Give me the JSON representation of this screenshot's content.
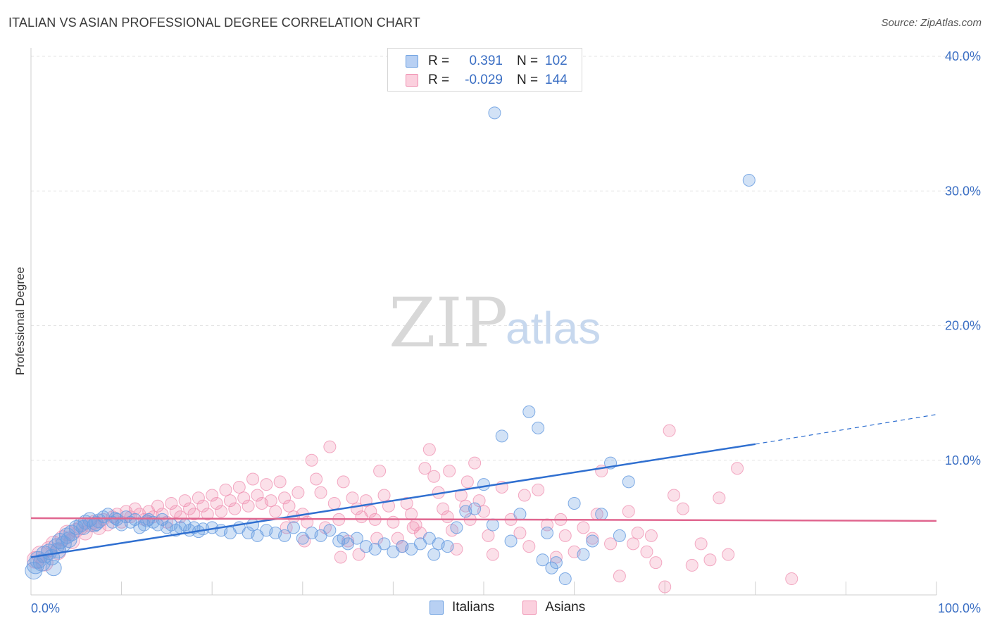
{
  "title": "ITALIAN VS ASIAN PROFESSIONAL DEGREE CORRELATION CHART",
  "source": "Source: ZipAtlas.com",
  "watermark": {
    "zip": "ZIP",
    "atlas": "atlas"
  },
  "legend": {
    "rows": [
      {
        "r_label": "R =",
        "r_value": "0.391",
        "n_label": "N =",
        "n_value": "102"
      },
      {
        "r_label": "R =",
        "r_value": "-0.029",
        "n_label": "N =",
        "n_value": "144"
      }
    ]
  },
  "bottom_legend": {
    "italians": "Italians",
    "asians": "Asians"
  },
  "chart_data": {
    "type": "scatter",
    "title": "ITALIAN VS ASIAN PROFESSIONAL DEGREE CORRELATION CHART",
    "ylabel": "Professional Degree",
    "xlabel": "",
    "xlim": [
      0,
      100
    ],
    "ylim": [
      0,
      40
    ],
    "x_tick_labels": [
      "0.0%",
      "100.0%"
    ],
    "y_ticks": [
      10,
      20,
      30,
      40
    ],
    "y_tick_labels": [
      "10.0%",
      "20.0%",
      "30.0%",
      "40.0%"
    ],
    "grid": true,
    "colors": {
      "italians": "#6a9ee0",
      "asians": "#ef8fb0",
      "italians_line": "#2f6fd0",
      "asians_line": "#e0668f"
    },
    "series": [
      {
        "name": "Italians",
        "r": 0.391,
        "n": 102,
        "trend": {
          "x0": 0,
          "y0": 2.8,
          "x1": 80,
          "y1": 11.2,
          "dashed_to_x": 100,
          "dashed_to_y": 13.4
        },
        "points": [
          [
            0.3,
            1.8
          ],
          [
            0.5,
            2.2
          ],
          [
            0.8,
            2.6
          ],
          [
            1.2,
            2.4
          ],
          [
            1.5,
            3.0
          ],
          [
            2.0,
            3.2
          ],
          [
            2.3,
            2.8
          ],
          [
            2.8,
            3.6
          ],
          [
            3.2,
            4.0
          ],
          [
            3.6,
            3.8
          ],
          [
            4.0,
            4.4
          ],
          [
            4.5,
            4.6
          ],
          [
            5.0,
            5.0
          ],
          [
            5.5,
            5.2
          ],
          [
            6.0,
            5.4
          ],
          [
            6.5,
            5.6
          ],
          [
            7.0,
            5.2
          ],
          [
            7.5,
            5.5
          ],
          [
            8.0,
            5.8
          ],
          [
            8.5,
            6.0
          ],
          [
            9.0,
            5.4
          ],
          [
            9.5,
            5.6
          ],
          [
            10.0,
            5.2
          ],
          [
            10.5,
            5.8
          ],
          [
            11.0,
            5.4
          ],
          [
            11.5,
            5.6
          ],
          [
            12.0,
            5.0
          ],
          [
            12.5,
            5.2
          ],
          [
            13.0,
            5.6
          ],
          [
            13.5,
            5.4
          ],
          [
            14.0,
            5.2
          ],
          [
            14.5,
            5.6
          ],
          [
            15.0,
            5.0
          ],
          [
            15.5,
            5.2
          ],
          [
            16.0,
            4.8
          ],
          [
            16.5,
            5.0
          ],
          [
            17.0,
            5.2
          ],
          [
            17.5,
            4.8
          ],
          [
            18.0,
            5.0
          ],
          [
            19.0,
            4.9
          ],
          [
            20.0,
            5.0
          ],
          [
            21.0,
            4.8
          ],
          [
            22.0,
            4.6
          ],
          [
            23.0,
            5.0
          ],
          [
            24.0,
            4.6
          ],
          [
            25.0,
            4.4
          ],
          [
            26.0,
            4.8
          ],
          [
            27.0,
            4.6
          ],
          [
            28.0,
            4.4
          ],
          [
            29.0,
            5.0
          ],
          [
            30.0,
            4.2
          ],
          [
            31.0,
            4.6
          ],
          [
            32.0,
            4.4
          ],
          [
            33.0,
            4.8
          ],
          [
            34.0,
            4.0
          ],
          [
            35.0,
            3.8
          ],
          [
            36.0,
            4.2
          ],
          [
            37.0,
            3.6
          ],
          [
            38.0,
            3.4
          ],
          [
            39.0,
            3.8
          ],
          [
            40.0,
            3.2
          ],
          [
            41.0,
            3.6
          ],
          [
            42.0,
            3.4
          ],
          [
            43.0,
            3.8
          ],
          [
            44.0,
            4.2
          ],
          [
            45.0,
            3.8
          ],
          [
            46.0,
            3.6
          ],
          [
            47.0,
            5.0
          ],
          [
            48.0,
            6.2
          ],
          [
            49.0,
            6.4
          ],
          [
            50.0,
            8.2
          ],
          [
            51.0,
            5.2
          ],
          [
            52.0,
            11.8
          ],
          [
            53.0,
            4.0
          ],
          [
            54.0,
            6.0
          ],
          [
            55.0,
            13.6
          ],
          [
            56.0,
            12.4
          ],
          [
            57.0,
            4.6
          ],
          [
            58.0,
            2.4
          ],
          [
            59.0,
            1.2
          ],
          [
            60.0,
            6.8
          ],
          [
            61.0,
            3.0
          ],
          [
            62.0,
            4.0
          ],
          [
            63.0,
            6.0
          ],
          [
            64.0,
            9.8
          ],
          [
            65.0,
            4.4
          ],
          [
            66.0,
            8.4
          ],
          [
            51.2,
            35.8
          ],
          [
            79.3,
            30.8
          ],
          [
            2.5,
            2.0
          ],
          [
            3.0,
            3.3
          ],
          [
            4.2,
            4.1
          ],
          [
            5.8,
            5.0
          ],
          [
            7.2,
            5.3
          ],
          [
            9.3,
            5.7
          ],
          [
            12.8,
            5.5
          ],
          [
            18.5,
            4.7
          ],
          [
            24.5,
            5.2
          ],
          [
            34.5,
            4.2
          ],
          [
            44.5,
            3.0
          ],
          [
            56.5,
            2.6
          ],
          [
            57.5,
            2.0
          ]
        ]
      },
      {
        "name": "Asians",
        "r": -0.029,
        "n": 144,
        "trend": {
          "x0": 0,
          "y0": 5.7,
          "x1": 100,
          "y1": 5.5
        },
        "points": [
          [
            0.5,
            2.6
          ],
          [
            1.0,
            3.0
          ],
          [
            1.5,
            2.4
          ],
          [
            2.0,
            3.4
          ],
          [
            2.5,
            3.8
          ],
          [
            3.0,
            3.2
          ],
          [
            3.5,
            4.2
          ],
          [
            4.0,
            4.6
          ],
          [
            4.5,
            4.0
          ],
          [
            5.0,
            4.8
          ],
          [
            5.5,
            5.0
          ],
          [
            6.0,
            4.6
          ],
          [
            6.5,
            5.2
          ],
          [
            7.0,
            5.4
          ],
          [
            7.5,
            5.0
          ],
          [
            8.0,
            5.6
          ],
          [
            8.5,
            5.2
          ],
          [
            9.0,
            5.8
          ],
          [
            9.5,
            6.0
          ],
          [
            10.0,
            5.4
          ],
          [
            10.5,
            6.2
          ],
          [
            11.0,
            5.8
          ],
          [
            11.5,
            6.4
          ],
          [
            12.0,
            6.0
          ],
          [
            12.5,
            5.6
          ],
          [
            13.0,
            6.2
          ],
          [
            13.5,
            5.8
          ],
          [
            14.0,
            6.6
          ],
          [
            14.5,
            6.0
          ],
          [
            15.0,
            5.4
          ],
          [
            15.5,
            6.8
          ],
          [
            16.0,
            6.2
          ],
          [
            16.5,
            5.8
          ],
          [
            17.0,
            7.0
          ],
          [
            17.5,
            6.4
          ],
          [
            18.0,
            6.0
          ],
          [
            18.5,
            7.2
          ],
          [
            19.0,
            6.6
          ],
          [
            19.5,
            6.0
          ],
          [
            20.0,
            7.4
          ],
          [
            20.5,
            6.8
          ],
          [
            21.0,
            6.2
          ],
          [
            21.5,
            7.8
          ],
          [
            22.0,
            7.0
          ],
          [
            22.5,
            6.4
          ],
          [
            23.0,
            8.0
          ],
          [
            23.5,
            7.2
          ],
          [
            24.0,
            6.6
          ],
          [
            24.5,
            8.6
          ],
          [
            25.0,
            7.4
          ],
          [
            25.5,
            6.8
          ],
          [
            26.0,
            8.2
          ],
          [
            26.5,
            7.0
          ],
          [
            27.0,
            6.2
          ],
          [
            27.5,
            8.4
          ],
          [
            28.0,
            7.2
          ],
          [
            28.5,
            6.6
          ],
          [
            29.0,
            5.8
          ],
          [
            29.5,
            7.6
          ],
          [
            30.0,
            6.0
          ],
          [
            30.5,
            5.4
          ],
          [
            31.0,
            10.0
          ],
          [
            31.5,
            8.6
          ],
          [
            32.0,
            7.6
          ],
          [
            32.5,
            5.0
          ],
          [
            33.0,
            11.0
          ],
          [
            33.5,
            6.8
          ],
          [
            34.0,
            5.6
          ],
          [
            34.5,
            8.4
          ],
          [
            35.0,
            4.0
          ],
          [
            35.5,
            7.2
          ],
          [
            36.0,
            6.4
          ],
          [
            36.5,
            5.8
          ],
          [
            37.0,
            7.0
          ],
          [
            37.5,
            6.2
          ],
          [
            38.0,
            5.6
          ],
          [
            38.5,
            9.2
          ],
          [
            39.0,
            7.4
          ],
          [
            39.5,
            6.6
          ],
          [
            40.0,
            5.4
          ],
          [
            40.5,
            4.2
          ],
          [
            41.0,
            3.6
          ],
          [
            41.5,
            6.8
          ],
          [
            42.0,
            6.0
          ],
          [
            42.5,
            5.2
          ],
          [
            43.0,
            4.6
          ],
          [
            43.5,
            9.4
          ],
          [
            44.0,
            10.8
          ],
          [
            44.5,
            8.8
          ],
          [
            45.0,
            7.6
          ],
          [
            45.5,
            6.4
          ],
          [
            46.0,
            5.8
          ],
          [
            46.5,
            4.8
          ],
          [
            47.0,
            3.4
          ],
          [
            47.5,
            7.4
          ],
          [
            48.0,
            6.6
          ],
          [
            48.5,
            5.6
          ],
          [
            49.0,
            9.8
          ],
          [
            49.5,
            7.0
          ],
          [
            50.0,
            6.2
          ],
          [
            50.5,
            4.4
          ],
          [
            51.0,
            3.0
          ],
          [
            52.0,
            8.0
          ],
          [
            53.0,
            5.6
          ],
          [
            54.0,
            4.6
          ],
          [
            55.0,
            3.6
          ],
          [
            56.0,
            7.8
          ],
          [
            57.0,
            5.2
          ],
          [
            58.0,
            2.8
          ],
          [
            59.0,
            4.4
          ],
          [
            60.0,
            3.2
          ],
          [
            61.0,
            5.0
          ],
          [
            62.0,
            4.2
          ],
          [
            63.0,
            9.2
          ],
          [
            64.0,
            3.8
          ],
          [
            65.0,
            1.4
          ],
          [
            66.0,
            6.2
          ],
          [
            67.0,
            4.6
          ],
          [
            68.0,
            3.2
          ],
          [
            69.0,
            2.4
          ],
          [
            70.0,
            0.6
          ],
          [
            71.0,
            7.4
          ],
          [
            72.0,
            6.4
          ],
          [
            73.0,
            2.2
          ],
          [
            74.0,
            3.8
          ],
          [
            75.0,
            2.6
          ],
          [
            76.0,
            7.2
          ],
          [
            77.0,
            3.0
          ],
          [
            78.0,
            9.4
          ],
          [
            84.0,
            1.2
          ],
          [
            70.5,
            12.2
          ],
          [
            68.5,
            4.4
          ],
          [
            66.5,
            3.8
          ],
          [
            62.5,
            6.0
          ],
          [
            58.5,
            5.6
          ],
          [
            54.5,
            7.4
          ],
          [
            48.2,
            8.4
          ],
          [
            46.2,
            9.2
          ],
          [
            42.2,
            5.0
          ],
          [
            38.2,
            4.2
          ],
          [
            36.2,
            3.0
          ],
          [
            34.2,
            2.8
          ],
          [
            30.2,
            4.0
          ],
          [
            28.2,
            5.0
          ]
        ]
      }
    ]
  }
}
